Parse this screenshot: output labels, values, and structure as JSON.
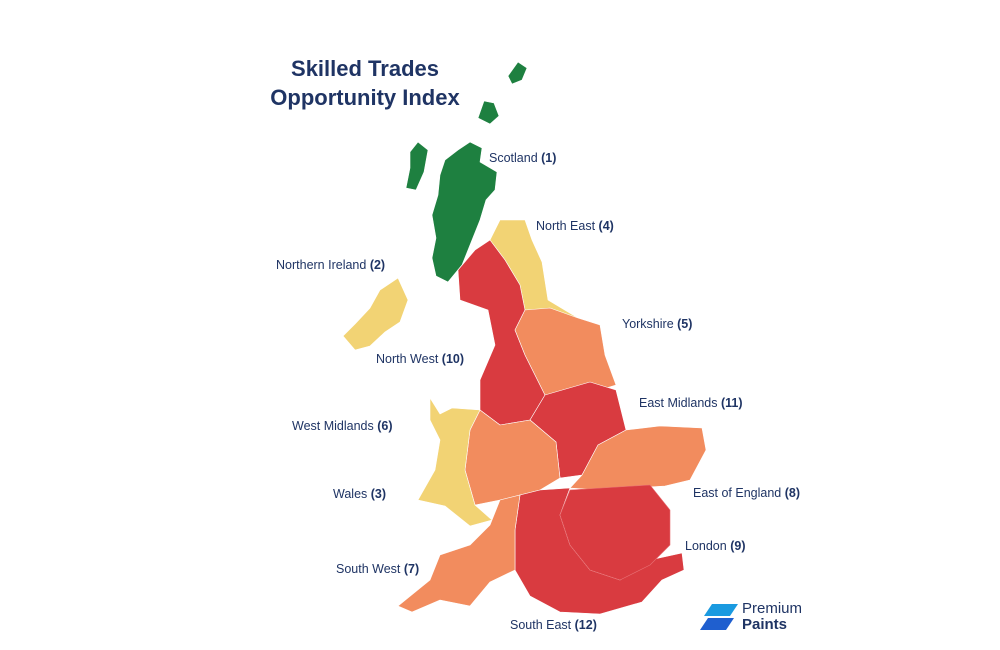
{
  "title": {
    "line1": "Skilled Trades",
    "line2": "Opportunity Index"
  },
  "regions": [
    {
      "name": "Scotland",
      "rank": "(1)"
    },
    {
      "name": "North East",
      "rank": "(4)"
    },
    {
      "name": "Northern Ireland",
      "rank": "(2)"
    },
    {
      "name": "Yorkshire",
      "rank": "(5)"
    },
    {
      "name": "North West",
      "rank": "(10)"
    },
    {
      "name": "East Midlands",
      "rank": "(11)"
    },
    {
      "name": "West Midlands",
      "rank": "(6)"
    },
    {
      "name": "East of England",
      "rank": "(8)"
    },
    {
      "name": "Wales",
      "rank": "(3)"
    },
    {
      "name": "London",
      "rank": "(9)"
    },
    {
      "name": "South West",
      "rank": "(7)"
    },
    {
      "name": "South East",
      "rank": "(12)"
    }
  ],
  "logo": {
    "line1": "Premium",
    "line2": "Paints"
  }
}
